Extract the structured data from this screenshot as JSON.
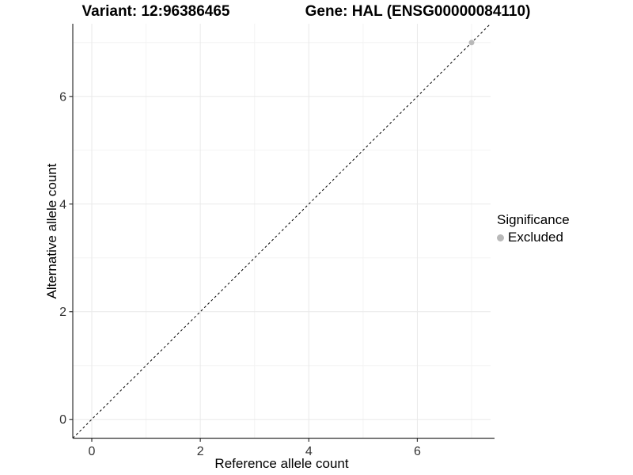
{
  "chart_data": {
    "type": "scatter",
    "title_left": "Variant: 12:96386465",
    "title_right": "Gene: HAL (ENSG00000084110)",
    "xlabel": "Reference allele count",
    "ylabel": "Alternative allele count",
    "xlim": [
      -0.35,
      7.35
    ],
    "ylim": [
      -0.35,
      7.35
    ],
    "x_major_ticks": [
      0,
      2,
      4,
      6
    ],
    "x_minor_ticks": [
      1,
      3,
      5,
      7
    ],
    "y_major_ticks": [
      0,
      2,
      4,
      6
    ],
    "y_minor_ticks": [
      1,
      3,
      5,
      7
    ],
    "grid": true,
    "colors": {
      "major_grid": "#e9e9e9",
      "minor_grid": "#f3f3f3",
      "axis_line": "#333333",
      "tick_label": "#333333",
      "reference_line": "#000000",
      "excluded_point": "#b9b9b9"
    },
    "reference_line": {
      "slope": 1,
      "intercept": 0,
      "style": "dashed"
    },
    "series": [
      {
        "name": "Excluded",
        "color": "#b9b9b9",
        "points": [
          {
            "x": 7,
            "y": 7
          }
        ]
      }
    ],
    "legend": {
      "title": "Significance",
      "position": "right",
      "items": [
        {
          "label": "Excluded",
          "color": "#b9b9b9"
        }
      ]
    }
  }
}
